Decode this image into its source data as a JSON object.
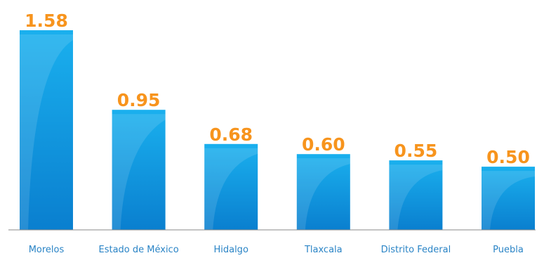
{
  "chart_data": {
    "type": "bar",
    "categories": [
      "Morelos",
      "Estado de México",
      "Hidalgo",
      "Tlaxcala",
      "Distrito Federal",
      "Puebla"
    ],
    "values": [
      1.58,
      0.95,
      0.68,
      0.6,
      0.55,
      0.5
    ],
    "value_labels": [
      "1.58",
      "0.95",
      "0.68",
      "0.60",
      "0.55",
      "0.50"
    ],
    "ylim": [
      0,
      1.58
    ],
    "grid": false,
    "legend": "none"
  },
  "colors": {
    "bar_light": "#1ab0ee",
    "bar_dark": "#0a7fcf",
    "value_label": "#f7941d",
    "category_label": "#2a84c6",
    "axis": "#8a8a8a"
  }
}
